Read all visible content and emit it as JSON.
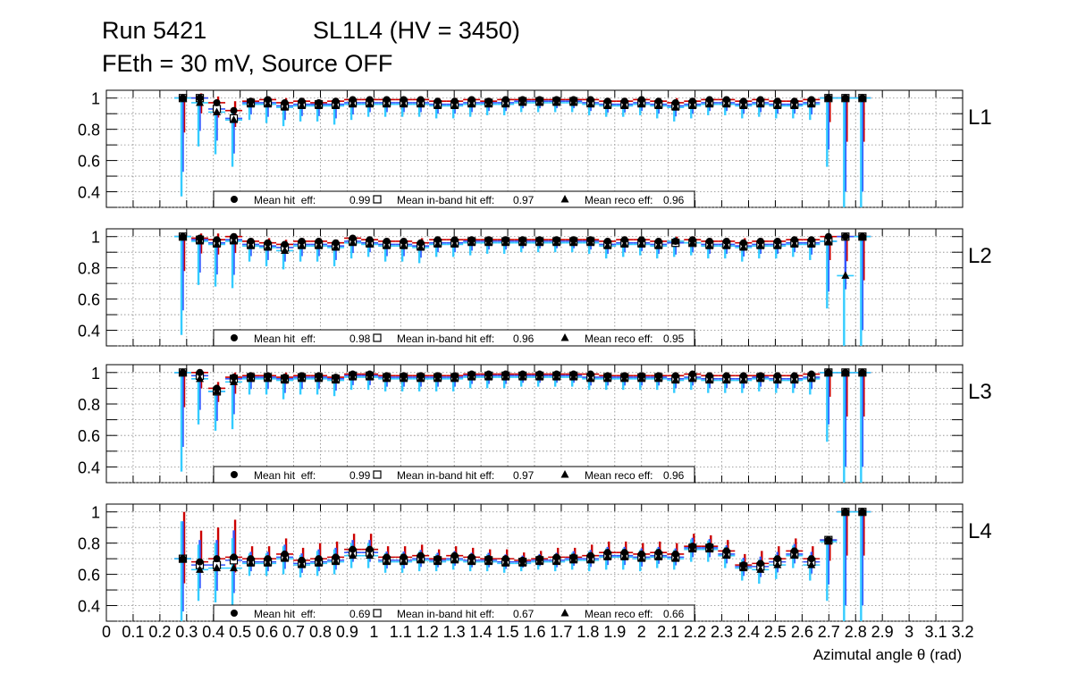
{
  "header": {
    "run": "Run 5421",
    "chamber": "SL1L4 (HV = 3450)",
    "conditions": "FEth = 30 mV, Source OFF"
  },
  "colors": {
    "hit_err": "#cc0000",
    "inband_err": "#3355ff",
    "reco_err": "#33ccff",
    "markers": "#000000",
    "grid": "#888888"
  },
  "chart_data": {
    "type": "scatter",
    "xlabel": "Azimutal angle θ (rad)",
    "xlim": [
      0,
      3.2
    ],
    "ylim": [
      0.3,
      1.05
    ],
    "x_ticks": [
      "0",
      "0.1",
      "0.2",
      "0.3",
      "0.4",
      "0.5",
      "0.6",
      "0.7",
      "0.8",
      "0.9",
      "1",
      "1.1",
      "1.2",
      "1.3",
      "1.4",
      "1.5",
      "1.6",
      "1.7",
      "1.8",
      "1.9",
      "2",
      "2.1",
      "2.2",
      "2.3",
      "2.4",
      "2.5",
      "2.6",
      "2.7",
      "2.8",
      "2.9",
      "3",
      "3.1",
      "3.2"
    ],
    "y_ticks": [
      "0.4",
      "0.6",
      "0.8",
      "1"
    ],
    "y_tick_values": [
      0.4,
      0.6,
      0.8,
      1.0
    ],
    "x": [
      0.2857,
      0.3492,
      0.4127,
      0.4762,
      0.5397,
      0.6032,
      0.6667,
      0.7302,
      0.7937,
      0.8571,
      0.9206,
      0.9841,
      1.0476,
      1.1111,
      1.1746,
      1.2381,
      1.3016,
      1.3651,
      1.4286,
      1.4921,
      1.5556,
      1.619,
      1.6825,
      1.746,
      1.8095,
      1.873,
      1.9365,
      2.0,
      2.0635,
      2.127,
      2.1905,
      2.254,
      2.3175,
      2.381,
      2.4444,
      2.5079,
      2.5714,
      2.6349,
      2.6984,
      2.7619,
      2.8254
    ],
    "legend_labels": [
      "Mean hit  eff:",
      "Mean in-band hit eff:",
      "Mean reco eff:"
    ],
    "panels": [
      {
        "label": "L1",
        "legend_values": [
          "0.99",
          "0.97",
          "0.96"
        ],
        "hit": [
          1.0,
          1.0,
          0.97,
          0.92,
          0.98,
          0.99,
          0.97,
          0.98,
          0.97,
          0.98,
          0.99,
          0.99,
          0.99,
          0.99,
          0.99,
          0.98,
          0.98,
          0.99,
          0.98,
          0.99,
          0.99,
          0.99,
          0.99,
          0.99,
          0.99,
          0.98,
          0.98,
          0.99,
          0.98,
          0.97,
          0.98,
          0.99,
          0.99,
          0.98,
          0.99,
          0.98,
          0.98,
          0.99,
          1.0,
          1.0,
          1.0
        ],
        "inband": [
          1.0,
          1.0,
          0.93,
          0.87,
          0.97,
          0.97,
          0.95,
          0.96,
          0.96,
          0.96,
          0.97,
          0.97,
          0.97,
          0.97,
          0.97,
          0.96,
          0.96,
          0.97,
          0.97,
          0.97,
          0.98,
          0.98,
          0.98,
          0.98,
          0.97,
          0.96,
          0.96,
          0.97,
          0.96,
          0.95,
          0.96,
          0.97,
          0.97,
          0.96,
          0.97,
          0.96,
          0.96,
          0.97,
          1.0,
          1.0,
          1.0
        ],
        "reco": [
          1.0,
          0.97,
          0.91,
          0.86,
          0.96,
          0.96,
          0.94,
          0.95,
          0.95,
          0.95,
          0.96,
          0.96,
          0.96,
          0.96,
          0.96,
          0.95,
          0.95,
          0.96,
          0.96,
          0.96,
          0.97,
          0.97,
          0.97,
          0.97,
          0.96,
          0.95,
          0.95,
          0.96,
          0.95,
          0.94,
          0.95,
          0.96,
          0.96,
          0.95,
          0.96,
          0.95,
          0.95,
          0.96,
          1.0,
          1.0,
          1.0
        ],
        "err_lo": [
          0.63,
          0.28,
          0.27,
          0.3,
          0.1,
          0.12,
          0.12,
          0.1,
          0.1,
          0.12,
          0.1,
          0.08,
          0.08,
          0.08,
          0.08,
          0.08,
          0.08,
          0.08,
          0.07,
          0.07,
          0.06,
          0.06,
          0.06,
          0.06,
          0.07,
          0.07,
          0.07,
          0.07,
          0.08,
          0.09,
          0.08,
          0.07,
          0.07,
          0.08,
          0.08,
          0.08,
          0.08,
          0.1,
          0.44,
          0.8,
          0.8
        ],
        "err_hi": [
          0.0,
          0.03,
          0.04,
          0.06,
          0.02,
          0.02,
          0.03,
          0.02,
          0.02,
          0.02,
          0.01,
          0.01,
          0.01,
          0.01,
          0.01,
          0.02,
          0.02,
          0.01,
          0.02,
          0.01,
          0.01,
          0.01,
          0.01,
          0.01,
          0.01,
          0.02,
          0.02,
          0.01,
          0.02,
          0.03,
          0.02,
          0.01,
          0.01,
          0.02,
          0.01,
          0.02,
          0.02,
          0.01,
          0.0,
          0.0,
          0.0
        ]
      },
      {
        "label": "L2",
        "legend_values": [
          "0.98",
          "0.96",
          "0.95"
        ],
        "hit": [
          1.0,
          0.99,
          0.98,
          1.0,
          0.97,
          0.96,
          0.95,
          0.97,
          0.97,
          0.96,
          0.99,
          0.98,
          0.97,
          0.97,
          0.96,
          0.98,
          0.98,
          0.98,
          0.98,
          0.98,
          0.98,
          0.98,
          0.98,
          0.98,
          0.98,
          0.97,
          0.98,
          0.98,
          0.97,
          0.97,
          0.98,
          0.97,
          0.97,
          0.96,
          0.97,
          0.97,
          0.98,
          0.98,
          1.0,
          1.0,
          1.0
        ],
        "inband": [
          1.0,
          0.98,
          0.96,
          0.98,
          0.95,
          0.94,
          0.93,
          0.95,
          0.95,
          0.94,
          0.97,
          0.96,
          0.95,
          0.95,
          0.94,
          0.96,
          0.96,
          0.97,
          0.97,
          0.97,
          0.97,
          0.97,
          0.97,
          0.97,
          0.97,
          0.95,
          0.96,
          0.96,
          0.95,
          0.96,
          0.96,
          0.95,
          0.95,
          0.94,
          0.95,
          0.95,
          0.96,
          0.96,
          0.97,
          1.0,
          1.0
        ],
        "reco": [
          1.0,
          0.97,
          0.95,
          0.97,
          0.94,
          0.93,
          0.91,
          0.94,
          0.94,
          0.93,
          0.96,
          0.95,
          0.94,
          0.94,
          0.93,
          0.95,
          0.95,
          0.96,
          0.96,
          0.96,
          0.96,
          0.96,
          0.96,
          0.96,
          0.96,
          0.94,
          0.95,
          0.95,
          0.94,
          0.97,
          0.96,
          0.94,
          0.94,
          0.93,
          0.94,
          0.94,
          0.95,
          0.95,
          0.97,
          0.75,
          1.0
        ],
        "err_lo": [
          0.63,
          0.28,
          0.27,
          0.3,
          0.1,
          0.12,
          0.12,
          0.1,
          0.1,
          0.12,
          0.1,
          0.08,
          0.1,
          0.1,
          0.1,
          0.08,
          0.08,
          0.08,
          0.07,
          0.07,
          0.06,
          0.06,
          0.06,
          0.06,
          0.07,
          0.08,
          0.08,
          0.07,
          0.08,
          0.1,
          0.08,
          0.08,
          0.08,
          0.09,
          0.08,
          0.08,
          0.08,
          0.1,
          0.43,
          0.45,
          0.8
        ],
        "err_hi": [
          0.0,
          0.03,
          0.04,
          0.02,
          0.02,
          0.03,
          0.03,
          0.02,
          0.02,
          0.02,
          0.01,
          0.01,
          0.02,
          0.02,
          0.03,
          0.02,
          0.02,
          0.01,
          0.02,
          0.01,
          0.01,
          0.01,
          0.01,
          0.01,
          0.01,
          0.02,
          0.02,
          0.01,
          0.02,
          0.03,
          0.02,
          0.02,
          0.02,
          0.03,
          0.02,
          0.02,
          0.02,
          0.01,
          0.0,
          0.0,
          0.0
        ]
      },
      {
        "label": "L3",
        "legend_values": [
          "0.99",
          "0.97",
          "0.96"
        ],
        "hit": [
          1.0,
          1.0,
          0.9,
          0.97,
          0.98,
          0.98,
          0.97,
          0.98,
          0.98,
          0.97,
          0.99,
          0.99,
          0.98,
          0.98,
          0.98,
          0.98,
          0.98,
          0.99,
          0.99,
          0.99,
          0.99,
          0.99,
          0.99,
          0.99,
          0.99,
          0.98,
          0.98,
          0.98,
          0.98,
          0.98,
          0.99,
          0.98,
          0.98,
          0.98,
          0.98,
          0.98,
          0.98,
          0.99,
          1.0,
          1.0,
          1.0
        ],
        "inband": [
          1.0,
          0.98,
          0.88,
          0.96,
          0.97,
          0.97,
          0.96,
          0.97,
          0.97,
          0.96,
          0.98,
          0.98,
          0.97,
          0.97,
          0.97,
          0.97,
          0.97,
          0.98,
          0.98,
          0.98,
          0.98,
          0.98,
          0.98,
          0.98,
          0.97,
          0.97,
          0.97,
          0.97,
          0.97,
          0.96,
          0.97,
          0.96,
          0.96,
          0.96,
          0.97,
          0.96,
          0.96,
          0.97,
          1.0,
          1.0,
          1.0
        ],
        "reco": [
          1.0,
          0.96,
          0.88,
          0.94,
          0.96,
          0.96,
          0.95,
          0.96,
          0.96,
          0.95,
          0.97,
          0.97,
          0.96,
          0.96,
          0.96,
          0.96,
          0.96,
          0.97,
          0.97,
          0.97,
          0.97,
          0.97,
          0.97,
          0.97,
          0.96,
          0.96,
          0.96,
          0.96,
          0.96,
          0.95,
          0.96,
          0.95,
          0.95,
          0.95,
          0.96,
          0.95,
          0.95,
          0.96,
          1.0,
          1.0,
          1.0
        ],
        "err_lo": [
          0.63,
          0.29,
          0.25,
          0.3,
          0.1,
          0.1,
          0.12,
          0.1,
          0.1,
          0.1,
          0.08,
          0.08,
          0.08,
          0.08,
          0.08,
          0.08,
          0.08,
          0.07,
          0.07,
          0.07,
          0.06,
          0.06,
          0.06,
          0.06,
          0.07,
          0.07,
          0.07,
          0.07,
          0.07,
          0.08,
          0.07,
          0.08,
          0.08,
          0.08,
          0.08,
          0.08,
          0.08,
          0.1,
          0.44,
          0.8,
          0.8
        ],
        "err_hi": [
          0.0,
          0.02,
          0.04,
          0.03,
          0.02,
          0.02,
          0.03,
          0.02,
          0.02,
          0.02,
          0.01,
          0.01,
          0.02,
          0.02,
          0.02,
          0.02,
          0.02,
          0.01,
          0.01,
          0.01,
          0.01,
          0.01,
          0.01,
          0.01,
          0.01,
          0.02,
          0.02,
          0.02,
          0.02,
          0.02,
          0.01,
          0.02,
          0.02,
          0.02,
          0.02,
          0.02,
          0.02,
          0.01,
          0.0,
          0.0,
          0.0
        ]
      },
      {
        "label": "L4",
        "legend_values": [
          "0.69",
          "0.67",
          "0.66"
        ],
        "hit": [
          0.7,
          0.68,
          0.7,
          0.71,
          0.7,
          0.7,
          0.73,
          0.69,
          0.7,
          0.71,
          0.76,
          0.76,
          0.71,
          0.71,
          0.72,
          0.7,
          0.72,
          0.71,
          0.7,
          0.7,
          0.69,
          0.7,
          0.71,
          0.71,
          0.72,
          0.74,
          0.74,
          0.73,
          0.74,
          0.73,
          0.78,
          0.78,
          0.75,
          0.66,
          0.67,
          0.7,
          0.75,
          0.7,
          0.82,
          1.0,
          1.0
        ],
        "inband": [
          0.7,
          0.66,
          0.66,
          0.69,
          0.68,
          0.68,
          0.71,
          0.67,
          0.68,
          0.69,
          0.74,
          0.74,
          0.69,
          0.69,
          0.7,
          0.69,
          0.7,
          0.69,
          0.69,
          0.68,
          0.68,
          0.69,
          0.69,
          0.7,
          0.7,
          0.72,
          0.72,
          0.71,
          0.72,
          0.71,
          0.77,
          0.77,
          0.73,
          0.65,
          0.65,
          0.68,
          0.73,
          0.68,
          0.82,
          1.0,
          1.0
        ],
        "reco": [
          0.7,
          0.63,
          0.64,
          0.64,
          0.67,
          0.67,
          0.7,
          0.66,
          0.67,
          0.68,
          0.72,
          0.72,
          0.68,
          0.68,
          0.69,
          0.68,
          0.69,
          0.68,
          0.68,
          0.67,
          0.67,
          0.68,
          0.68,
          0.69,
          0.69,
          0.71,
          0.71,
          0.7,
          0.71,
          0.7,
          0.76,
          0.76,
          0.72,
          0.64,
          0.63,
          0.66,
          0.72,
          0.66,
          0.81,
          1.0,
          1.0
        ],
        "err_lo": [
          0.45,
          0.2,
          0.22,
          0.28,
          0.08,
          0.08,
          0.1,
          0.08,
          0.08,
          0.08,
          0.08,
          0.08,
          0.07,
          0.07,
          0.07,
          0.06,
          0.06,
          0.06,
          0.06,
          0.06,
          0.05,
          0.05,
          0.06,
          0.06,
          0.07,
          0.08,
          0.08,
          0.08,
          0.07,
          0.07,
          0.08,
          0.08,
          0.08,
          0.08,
          0.09,
          0.09,
          0.08,
          0.1,
          0.38,
          0.8,
          0.8
        ],
        "err_hi": [
          0.3,
          0.2,
          0.2,
          0.24,
          0.08,
          0.08,
          0.1,
          0.08,
          0.1,
          0.1,
          0.1,
          0.1,
          0.07,
          0.07,
          0.07,
          0.06,
          0.06,
          0.06,
          0.06,
          0.06,
          0.05,
          0.05,
          0.06,
          0.06,
          0.07,
          0.07,
          0.07,
          0.07,
          0.07,
          0.07,
          0.08,
          0.07,
          0.07,
          0.07,
          0.08,
          0.08,
          0.08,
          0.08,
          0.02,
          0.0,
          0.0
        ]
      }
    ]
  }
}
